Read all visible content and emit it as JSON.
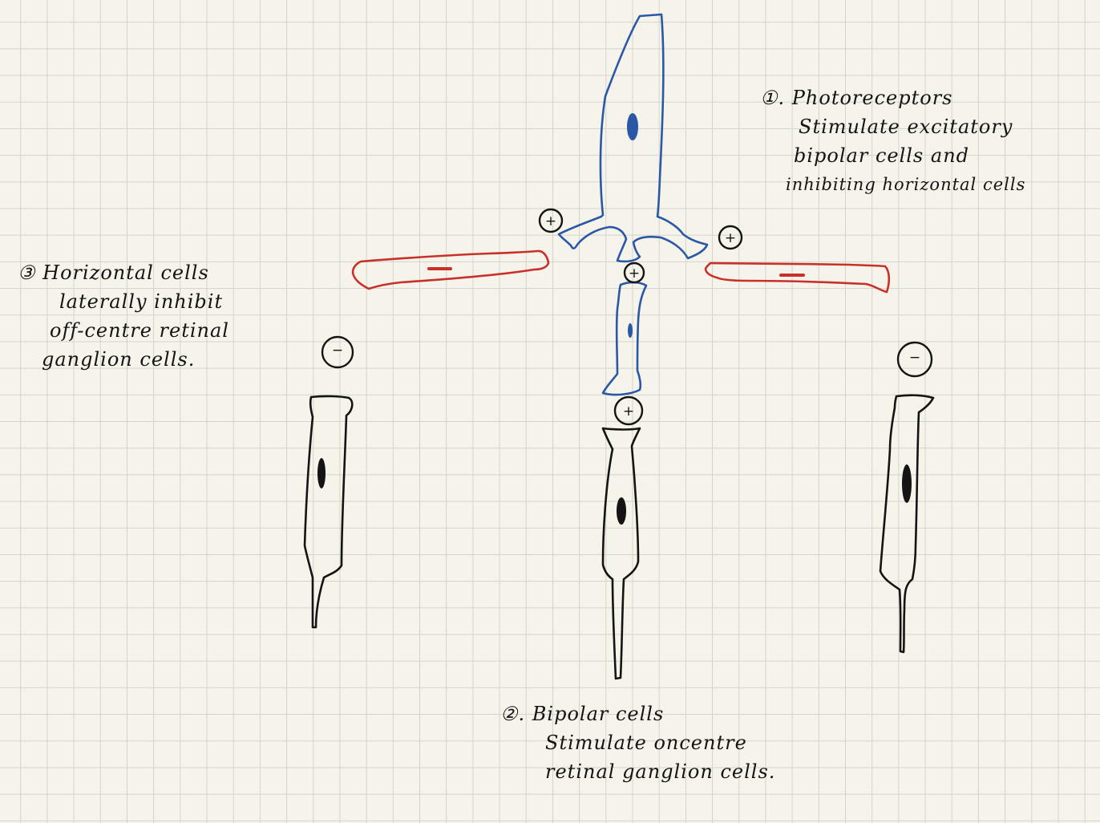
{
  "notes": {
    "photoreceptors": {
      "lines": [
        "①. Photoreceptors",
        "Stimulate excitatory",
        "bipolar cells and",
        "inhibiting horizontal cells"
      ]
    },
    "horizontal": {
      "lines": [
        "③ Horizontal cells",
        "laterally inhibit",
        "off-centre retinal",
        "ganglion cells."
      ]
    },
    "bipolar": {
      "lines": [
        "②. Bipolar cells",
        "Stimulate oncentre",
        "retinal ganglion cells."
      ]
    }
  },
  "signs": {
    "photo_left": "+",
    "photo_right": "+",
    "photo_bipolar": "+",
    "bipolar_ganglion": "+",
    "ganglion_left": "−",
    "ganglion_right": "−"
  },
  "colors": {
    "photoreceptor": "#2a58a6",
    "bipolar": "#2a58a6",
    "horizontal": "#c8302c",
    "ganglion": "#141414"
  }
}
